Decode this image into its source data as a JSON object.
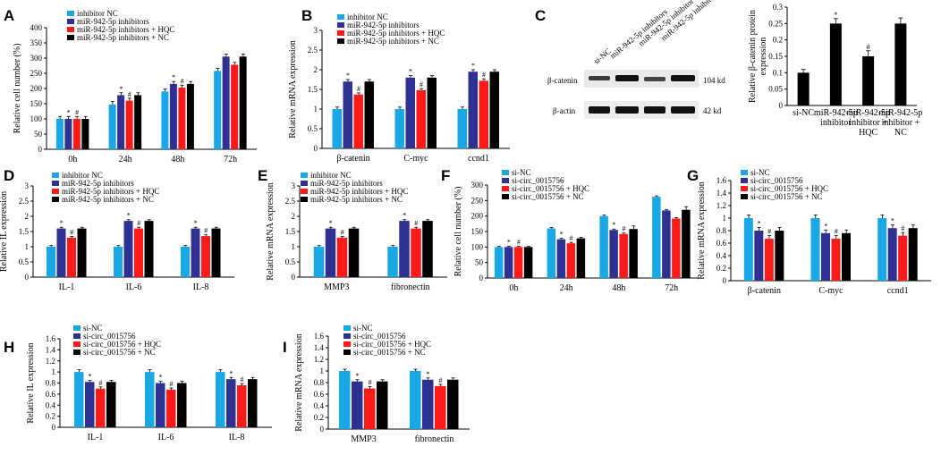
{
  "colors": {
    "c1": "#1aa7e6",
    "c2": "#2e3092",
    "c3": "#ff1a1a",
    "c4": "#000000"
  },
  "chart_data": [
    {
      "panel": "A",
      "type": "bar",
      "categories": [
        "0h",
        "24h",
        "48h",
        "72h"
      ],
      "ylabel": "Relative cell number (%)",
      "ylim": [
        0,
        400
      ],
      "yticks": [
        0,
        50,
        100,
        150,
        200,
        250,
        300,
        350,
        400
      ],
      "series": [
        {
          "name": "inhibitor NC",
          "values": [
            100,
            147,
            190,
            258
          ],
          "errors": [
            8,
            10,
            8,
            8
          ]
        },
        {
          "name": "miR-942-5p inhibitors",
          "values": [
            100,
            178,
            215,
            305
          ],
          "errors": [
            8,
            8,
            8,
            8
          ]
        },
        {
          "name": "miR-942-5p inhibitors + HQC",
          "values": [
            100,
            160,
            203,
            278
          ],
          "errors": [
            8,
            8,
            8,
            8
          ]
        },
        {
          "name": "miR-942-5p inhibitors + NC",
          "values": [
            100,
            178,
            215,
            305
          ],
          "errors": [
            8,
            8,
            8,
            8
          ]
        }
      ],
      "annotations": [
        [
          "",
          "*",
          "#",
          ""
        ],
        [
          "",
          "*",
          "#",
          ""
        ],
        [
          "",
          "*",
          "#",
          ""
        ]
      ]
    },
    {
      "panel": "B",
      "type": "bar",
      "categories": [
        "β-catenin",
        "C-myc",
        "ccnd1"
      ],
      "ylabel": "Relative mRNA expression",
      "ylim": [
        0,
        3
      ],
      "yticks": [
        0,
        0.5,
        1,
        1.5,
        2,
        2.5,
        3
      ],
      "series": [
        {
          "name": "inhibitor NC",
          "values": [
            1,
            1,
            1
          ],
          "errors": [
            0.05,
            0.05,
            0.05
          ]
        },
        {
          "name": "miR-942-5p inhibitors",
          "values": [
            1.7,
            1.8,
            1.95
          ],
          "errors": [
            0.05,
            0.05,
            0.05
          ]
        },
        {
          "name": "miR-942-5p inhibitors + HQC",
          "values": [
            1.37,
            1.48,
            1.72
          ],
          "errors": [
            0.04,
            0.04,
            0.05
          ]
        },
        {
          "name": "miR-942-5p inhibitors + NC",
          "values": [
            1.7,
            1.8,
            1.95
          ],
          "errors": [
            0.05,
            0.05,
            0.05
          ]
        }
      ],
      "annotations": [
        [
          "*",
          "#"
        ],
        [
          "*",
          "#"
        ],
        [
          "*",
          "#"
        ]
      ]
    },
    {
      "panel": "C",
      "type": "bar",
      "categories": [
        "si-NC",
        "miR-942-5p\ninhibitor",
        "miR-942-5p\ninhibitor +\nHQC",
        "miR-942-5p\ninhibitor +\nNC"
      ],
      "ylabel": "Relative β-catenin protein\nexpression",
      "ylim": [
        0,
        0.3
      ],
      "yticks": [
        0,
        0.05,
        0.1,
        0.15,
        0.2,
        0.25,
        0.3
      ],
      "values": [
        0.1,
        0.25,
        0.15,
        0.25
      ],
      "errors": [
        0.01,
        0.015,
        0.017,
        0.017
      ],
      "annotations": [
        "",
        "*",
        "#",
        ""
      ]
    },
    {
      "panel": "D",
      "type": "bar",
      "categories": [
        "IL-1",
        "IL-6",
        "IL-8"
      ],
      "ylabel": "Relative IL expression",
      "ylim": [
        0,
        3
      ],
      "yticks": [
        0,
        0.5,
        1,
        1.5,
        2,
        2.5,
        3
      ],
      "series": [
        {
          "name": "inhibitor NC",
          "values": [
            1,
            1,
            1
          ],
          "errors": [
            0.04,
            0.04,
            0.04
          ]
        },
        {
          "name": "miR-942-5p inhibitors",
          "values": [
            1.6,
            1.85,
            1.6
          ],
          "errors": [
            0.04,
            0.04,
            0.04
          ]
        },
        {
          "name": "miR-942-5p inhibitors + HQC",
          "values": [
            1.3,
            1.6,
            1.35
          ],
          "errors": [
            0.04,
            0.04,
            0.04
          ]
        },
        {
          "name": "miR-942-5p inhibitors + NC",
          "values": [
            1.6,
            1.85,
            1.6
          ],
          "errors": [
            0.04,
            0.04,
            0.04
          ]
        }
      ],
      "annotations": [
        [
          "*",
          "#"
        ],
        [
          "*",
          "#"
        ],
        [
          "*",
          "#"
        ]
      ]
    },
    {
      "panel": "E",
      "type": "bar",
      "categories": [
        "MMP3",
        "fibronectin"
      ],
      "ylabel": "Relative mRNA expression",
      "ylim": [
        0,
        3
      ],
      "yticks": [
        0,
        0.5,
        1,
        1.5,
        2,
        2.5,
        3
      ],
      "series": [
        {
          "name": "inhibitor NC",
          "values": [
            1,
            1
          ],
          "errors": [
            0.04,
            0.04
          ]
        },
        {
          "name": "miR-942-5p inhibitors",
          "values": [
            1.6,
            1.85
          ],
          "errors": [
            0.04,
            0.04
          ]
        },
        {
          "name": "miR-942-5p inhibitors + HQC",
          "values": [
            1.3,
            1.6
          ],
          "errors": [
            0.04,
            0.04
          ]
        },
        {
          "name": "miR-942-5p inhibitors + NC",
          "values": [
            1.6,
            1.85
          ],
          "errors": [
            0.04,
            0.04
          ]
        }
      ],
      "annotations": [
        [
          "*",
          "#"
        ],
        [
          "*",
          "#"
        ]
      ]
    },
    {
      "panel": "F",
      "type": "bar",
      "categories": [
        "0h",
        "24h",
        "48h",
        "72h"
      ],
      "ylabel": "Relative cell number (%)",
      "ylim": [
        0,
        300
      ],
      "yticks": [
        0,
        50,
        100,
        150,
        200,
        250,
        300
      ],
      "series": [
        {
          "name": "si-NC",
          "values": [
            100,
            160,
            200,
            262
          ],
          "errors": [
            2,
            3,
            3,
            3
          ]
        },
        {
          "name": "si-circ_0015756",
          "values": [
            100,
            125,
            155,
            218
          ],
          "errors": [
            2,
            3,
            3,
            3
          ]
        },
        {
          "name": "si-circ_0015756 + HQC",
          "values": [
            100,
            112,
            142,
            192
          ],
          "errors": [
            2,
            3,
            3,
            3
          ]
        },
        {
          "name": "si-circ_0015756 + NC",
          "values": [
            100,
            128,
            158,
            220
          ],
          "errors": [
            2,
            3,
            10,
            10
          ]
        }
      ],
      "annotations": [
        [
          "",
          "*",
          "#",
          ""
        ],
        [
          "",
          "*",
          "#",
          ""
        ],
        [
          "",
          "*",
          "#",
          ""
        ]
      ]
    },
    {
      "panel": "G",
      "type": "bar",
      "categories": [
        "β-catenin",
        "C-myc",
        "ccnd1"
      ],
      "ylabel": "Relative mRNA expression",
      "ylim": [
        0,
        1.6
      ],
      "yticks": [
        0,
        0.2,
        0.4,
        0.6,
        0.8,
        1,
        1.2,
        1.4,
        1.6
      ],
      "series": [
        {
          "name": "si-NC",
          "values": [
            1,
            1,
            1
          ],
          "errors": [
            0.05,
            0.05,
            0.05
          ]
        },
        {
          "name": "si-circ_0015756",
          "values": [
            0.8,
            0.76,
            0.84
          ],
          "errors": [
            0.05,
            0.05,
            0.05
          ]
        },
        {
          "name": "si-circ_0015756 + HQC",
          "values": [
            0.67,
            0.67,
            0.72
          ],
          "errors": [
            0.05,
            0.05,
            0.05
          ]
        },
        {
          "name": "si-circ_0015756 + NC",
          "values": [
            0.8,
            0.76,
            0.84
          ],
          "errors": [
            0.05,
            0.05,
            0.05
          ]
        }
      ],
      "annotations": [
        [
          "*",
          "#"
        ],
        [
          "*",
          "#"
        ],
        [
          "*",
          "#"
        ]
      ]
    },
    {
      "panel": "H",
      "type": "bar",
      "categories": [
        "IL-1",
        "IL-6",
        "IL-8"
      ],
      "ylabel": "Relative IL expression",
      "ylim": [
        0,
        1.6
      ],
      "yticks": [
        0,
        0.2,
        0.4,
        0.6,
        0.8,
        1,
        1.2,
        1.4,
        1.6
      ],
      "series": [
        {
          "name": "si-NC",
          "values": [
            1,
            1,
            1
          ],
          "errors": [
            0.04,
            0.04,
            0.04
          ]
        },
        {
          "name": "si-circ_0015756",
          "values": [
            0.82,
            0.8,
            0.87
          ],
          "errors": [
            0.03,
            0.03,
            0.03
          ]
        },
        {
          "name": "si-circ_0015756 + HQC",
          "values": [
            0.7,
            0.68,
            0.76
          ],
          "errors": [
            0.03,
            0.03,
            0.03
          ]
        },
        {
          "name": "si-circ_0015756 + NC",
          "values": [
            0.82,
            0.8,
            0.87
          ],
          "errors": [
            0.03,
            0.03,
            0.03
          ]
        }
      ],
      "annotations": [
        [
          "*",
          "#"
        ],
        [
          "*",
          "#"
        ],
        [
          "*",
          "#"
        ]
      ]
    },
    {
      "panel": "I",
      "type": "bar",
      "categories": [
        "MMP3",
        "fibronectin"
      ],
      "ylabel": "Relative mRNA expression",
      "ylim": [
        0,
        1.6
      ],
      "yticks": [
        0,
        0.2,
        0.4,
        0.6,
        0.8,
        1,
        1.2,
        1.4,
        1.6
      ],
      "series": [
        {
          "name": "si-NC",
          "values": [
            1,
            1
          ],
          "errors": [
            0.03,
            0.03
          ]
        },
        {
          "name": "si-circ_0015756",
          "values": [
            0.82,
            0.85
          ],
          "errors": [
            0.03,
            0.03
          ]
        },
        {
          "name": "si-circ_0015756 + HQC",
          "values": [
            0.7,
            0.74
          ],
          "errors": [
            0.03,
            0.03
          ]
        },
        {
          "name": "si-circ_0015756 + NC",
          "values": [
            0.82,
            0.85
          ],
          "errors": [
            0.03,
            0.03
          ]
        }
      ],
      "annotations": [
        [
          "*",
          "#"
        ],
        [
          "*",
          "#"
        ]
      ]
    }
  ],
  "blot": {
    "lanes": [
      "si-NC",
      "miR-942-5p inhibitors",
      "miR-942-5p inhibitor+ HQC",
      "miR-942-5p inhibitor + NC"
    ],
    "rows": [
      "β-catenin",
      "β-actin"
    ],
    "sizes": [
      "104 kd",
      "42 kd"
    ]
  }
}
